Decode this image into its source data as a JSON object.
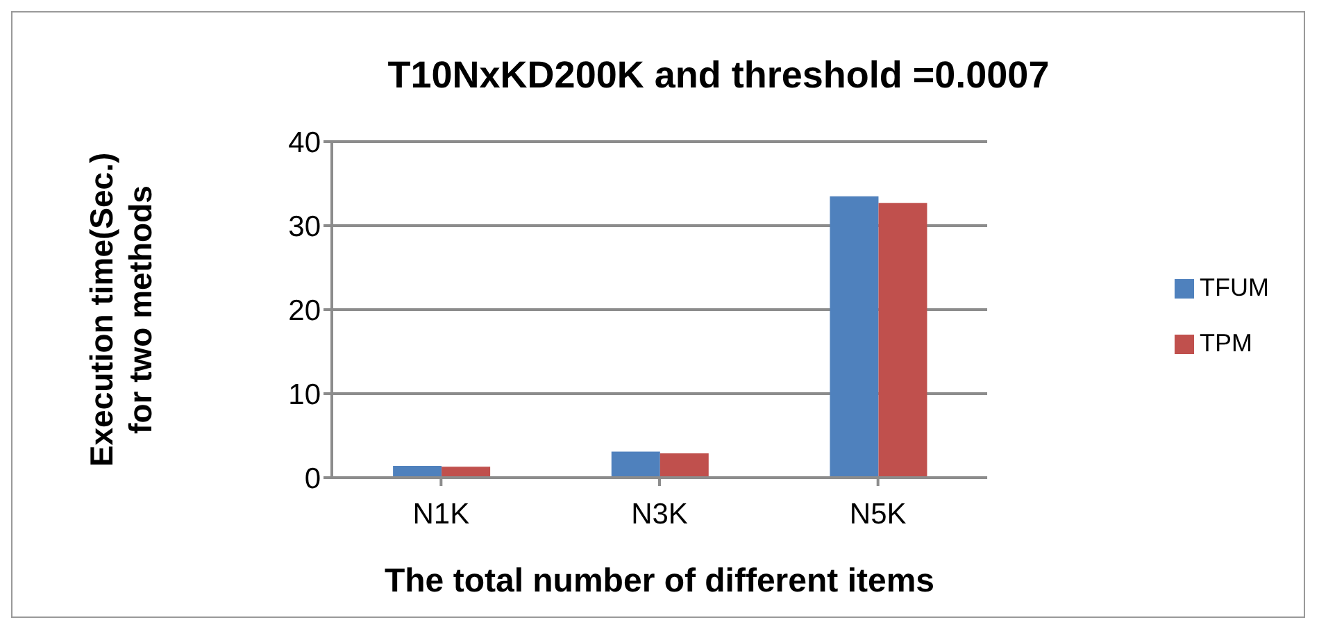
{
  "chart_data": {
    "type": "bar",
    "title": "T10NxKD200K and threshold =0.0007",
    "xlabel": "The total number of different items",
    "ylabel": "Execution time(Sec.)\nfor two methods",
    "categories": [
      "N1K",
      "N3K",
      "N5K"
    ],
    "series": [
      {
        "name": "TFUM",
        "color": "#4f81bd",
        "values": [
          1.4,
          3.1,
          33.5
        ]
      },
      {
        "name": "TPM",
        "color": "#c0504d",
        "values": [
          1.3,
          2.9,
          32.7
        ]
      }
    ],
    "ylim": [
      0,
      40
    ],
    "yticks": [
      0,
      10,
      20,
      30,
      40
    ],
    "grid": "y",
    "legend": "right"
  }
}
